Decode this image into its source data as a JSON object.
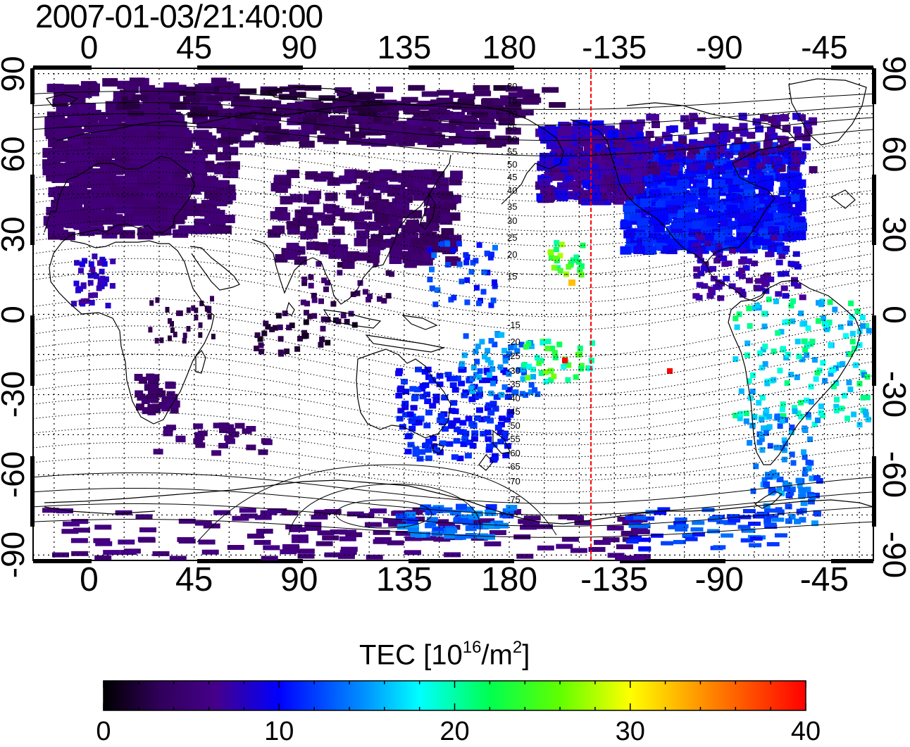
{
  "title": "2007-01-03/21:40:00",
  "map": {
    "top_ticks": [
      "0",
      "45",
      "90",
      "135",
      "180",
      "-135",
      "-90",
      "-45"
    ],
    "bottom_ticks": [
      "0",
      "45",
      "90",
      "135",
      "180",
      "-135",
      "-90",
      "-45"
    ],
    "left_ticks": [
      "90",
      "60",
      "30",
      "0",
      "-30",
      "-60",
      "-90"
    ],
    "right_ticks": [
      "90",
      "60",
      "30",
      "0",
      "-30",
      "-60",
      "-90"
    ],
    "lon_ticks_deg": [
      0,
      45,
      90,
      135,
      180,
      225,
      270,
      315
    ],
    "lat_ticks_deg": [
      90,
      60,
      30,
      0,
      -30,
      -60,
      -90
    ],
    "lon_range": [
      -24,
      336
    ],
    "lat_range": [
      -92,
      92
    ],
    "terminator_lon": 215,
    "terminator_color": "#ff0000",
    "contour_labels_north": [
      "80",
      "75",
      "70",
      "65",
      "60",
      "55",
      "50",
      "45",
      "40",
      "35",
      "30",
      "25",
      "20",
      "15"
    ],
    "contour_labels_south": [
      "15",
      "20",
      "25",
      "30",
      "35",
      "40",
      "45",
      "50",
      "55",
      "60",
      "65",
      "70",
      "75"
    ]
  },
  "colorbar": {
    "title": "TEC  [10",
    "title_exp": "16",
    "title_unit": "/m",
    "title_unit_exp": "2",
    "title_close": "]",
    "ticks": [
      "0",
      "10",
      "20",
      "30",
      "40"
    ],
    "min": 0,
    "max": 40,
    "stops": [
      "#000000",
      "#3a0060",
      "#4a0098",
      "#0000ff",
      "#0080ff",
      "#00ffff",
      "#00ff60",
      "#80ff00",
      "#ffff00",
      "#ff8000",
      "#ff0000"
    ]
  }
}
